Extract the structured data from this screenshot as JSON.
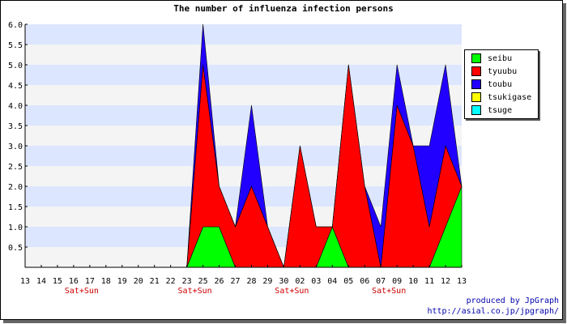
{
  "chart_data": {
    "type": "area",
    "title": "The number of influenza infection persons",
    "categories": [
      "13",
      "14",
      "15",
      "16",
      "17",
      "18",
      "19",
      "20",
      "21",
      "22",
      "23",
      "25",
      "26",
      "27",
      "28",
      "29",
      "30",
      "02",
      "03",
      "04",
      "05",
      "06",
      "07",
      "09",
      "10",
      "11",
      "12",
      "13"
    ],
    "weekend_labels": [
      {
        "index": 3,
        "text": "Sat+Sun"
      },
      {
        "index": 10,
        "text": "Sat+Sun"
      },
      {
        "index": 16,
        "text": "Sat+Sun"
      },
      {
        "index": 22,
        "text": "Sat+Sun"
      }
    ],
    "ylim": [
      0,
      6
    ],
    "yticks": [
      "6.0",
      "5.5",
      "5.0",
      "4.5",
      "4.0",
      "3.5",
      "3.0",
      "2.5",
      "2.0",
      "1.5",
      "1.0",
      "0.5"
    ],
    "series": [
      {
        "name": "seibu",
        "color": "#00ff00",
        "values": [
          0,
          0,
          0,
          0,
          0,
          0,
          0,
          0,
          0,
          0,
          0,
          1,
          1,
          0,
          0,
          0,
          0,
          0,
          0,
          1,
          0,
          0,
          0,
          0,
          0,
          0,
          1,
          2
        ]
      },
      {
        "name": "tyuubu",
        "color": "#ff0000",
        "values": [
          0,
          0,
          0,
          0,
          0,
          0,
          0,
          0,
          0,
          0,
          0,
          4,
          1,
          1,
          2,
          1,
          0,
          3,
          1,
          0,
          5,
          2,
          0,
          4,
          3,
          1,
          2,
          0
        ]
      },
      {
        "name": "toubu",
        "color": "#2200ff",
        "values": [
          0,
          0,
          0,
          0,
          0,
          0,
          0,
          0,
          0,
          0,
          0,
          1,
          0,
          0,
          2,
          0,
          0,
          0,
          0,
          0,
          0,
          0,
          1,
          1,
          0,
          2,
          2,
          0
        ]
      },
      {
        "name": "tsukigase",
        "color": "#ffff00",
        "values": [
          0,
          0,
          0,
          0,
          0,
          0,
          0,
          0,
          0,
          0,
          0,
          0,
          0,
          0,
          0,
          0,
          0,
          0,
          0,
          0,
          0,
          0,
          0,
          0,
          0,
          0,
          0,
          0
        ]
      },
      {
        "name": "tsuge",
        "color": "#00ffff",
        "values": [
          0,
          0,
          0,
          0,
          0,
          0,
          0,
          0,
          0,
          0,
          0,
          0,
          0,
          0,
          0,
          0,
          0,
          0,
          0,
          0,
          0,
          0,
          0,
          0,
          0,
          0,
          0,
          0
        ]
      }
    ],
    "stacked": true,
    "grid": true,
    "legend_position": "right",
    "band_colors": [
      "#dde6ff",
      "#f4f4f4"
    ],
    "weekend_color": "#cc0000"
  },
  "credit": {
    "line1": "produced by JpGraph",
    "line2": "http://asial.co.jp/jpgraph/"
  }
}
